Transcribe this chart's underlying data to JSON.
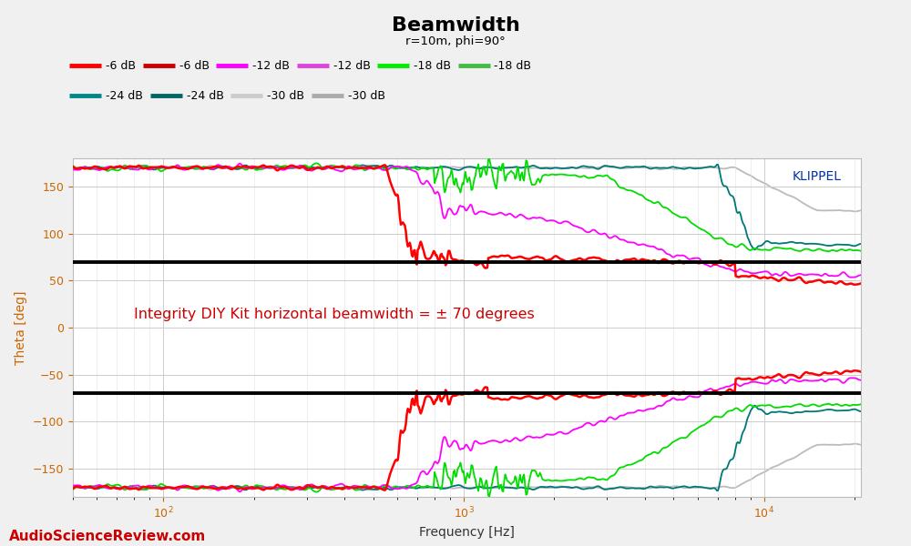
{
  "title": "Beamwidth",
  "subtitle": "r=10m, phi=90°",
  "xlabel": "Frequency [Hz]",
  "ylabel": "Theta [deg]",
  "xlim": [
    50,
    22000
  ],
  "ylim": [
    -180,
    180
  ],
  "yticks": [
    -150,
    -100,
    -50,
    0,
    50,
    100,
    150
  ],
  "hline1": 70,
  "hline2": -70,
  "annotation": "Integrity DIY Kit horizontal beamwidth = ± 70 degrees",
  "annotation_color": "#cc0000",
  "klippel_text": "KLIPPEL",
  "klippel_color": "#0033aa",
  "asr_text": "AudioScienceReview.com",
  "asr_color": "#cc0000",
  "bg_color": "#f0f0f0",
  "plot_bg_color": "#ffffff",
  "c_neg6": "#ff0000",
  "c_neg12": "#ff00ff",
  "c_neg18": "#00dd00",
  "c_neg24": "#007777",
  "c_neg30": "#bbbbbb"
}
